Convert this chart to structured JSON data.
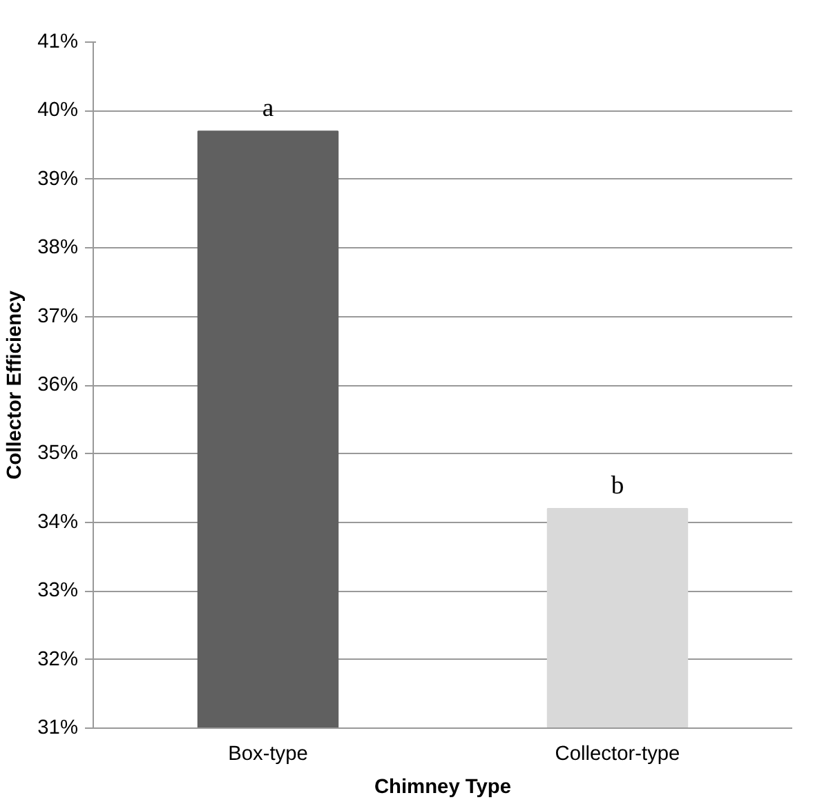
{
  "chart_data": {
    "type": "bar",
    "xlabel": "Chimney Type",
    "ylabel": "Collector Efficiency",
    "categories": [
      "Box-type",
      "Collector-type"
    ],
    "values": [
      39.7,
      34.2
    ],
    "colors": [
      "#606060",
      "#d9d9d9"
    ],
    "ylim": [
      31,
      41
    ],
    "yticks": [
      {
        "value": 31,
        "label": "31%"
      },
      {
        "value": 32,
        "label": "32%"
      },
      {
        "value": 33,
        "label": "33%"
      },
      {
        "value": 34,
        "label": "34%"
      },
      {
        "value": 35,
        "label": "35%"
      },
      {
        "value": 36,
        "label": "36%"
      },
      {
        "value": 37,
        "label": "37%"
      },
      {
        "value": 38,
        "label": "38%"
      },
      {
        "value": 39,
        "label": "39%"
      },
      {
        "value": 40,
        "label": "40%"
      },
      {
        "value": 41,
        "label": "41%"
      }
    ],
    "grid": "y",
    "annotations": [
      {
        "text": "a",
        "x": "Box-type",
        "y": 39.7
      },
      {
        "text": "b",
        "x": "Collector-type",
        "y": 34.2
      }
    ]
  }
}
